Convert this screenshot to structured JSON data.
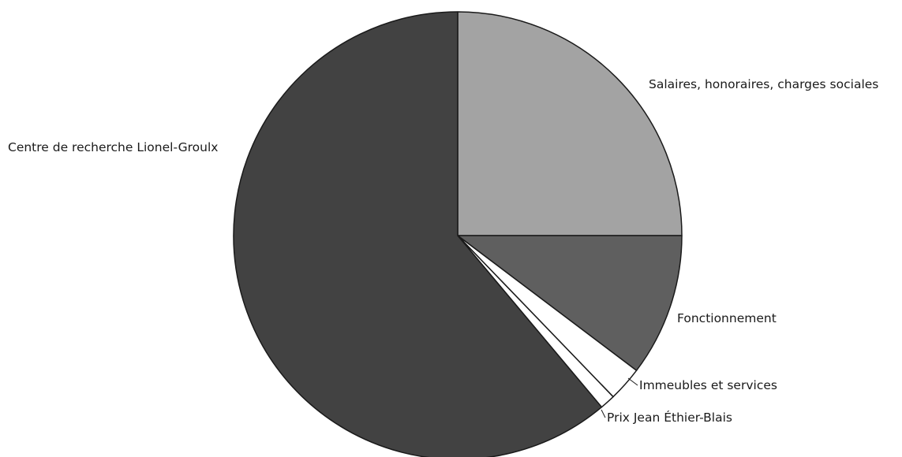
{
  "chart_data": {
    "type": "pie",
    "title": "",
    "start_angle_deg": 0,
    "direction": "clockwise",
    "slices": [
      {
        "label": "Salaires, honoraires, charges sociales",
        "value": 25.0,
        "color": "#a3a3a3"
      },
      {
        "label": "Fonctionnement",
        "value": 10.3,
        "color": "#5f5f5f"
      },
      {
        "label": "Immeubles et services",
        "value": 2.5,
        "color": "#ffffff"
      },
      {
        "label": "Prix Jean Éthier-Blais",
        "value": 1.1,
        "color": "#ffffff"
      },
      {
        "label": "Centre de recherche Lionel-Groulx",
        "value": 61.1,
        "color": "#424242"
      }
    ]
  }
}
